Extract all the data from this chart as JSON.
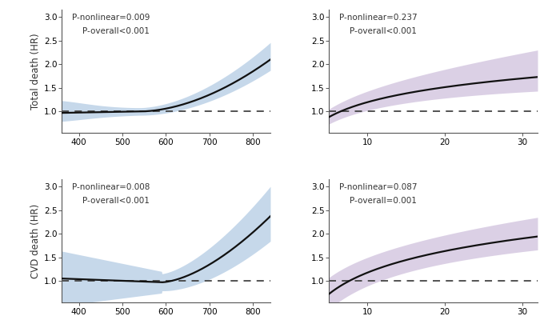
{
  "panels": [
    {
      "row": 0,
      "col": 0,
      "p_nonlinear": "P-nonlinear=0.009",
      "p_overall": "P-overall<0.001",
      "x_min": 360,
      "x_max": 840,
      "xticks": [
        400,
        500,
        600,
        700,
        800
      ],
      "color": "#a8c4e0",
      "curve_type": "blue_total",
      "ylabel": "Total death (HR)"
    },
    {
      "row": 0,
      "col": 1,
      "p_nonlinear": "P-nonlinear=0.237",
      "p_overall": "P-overall<0.001",
      "x_min": 5,
      "x_max": 32,
      "xticks": [
        10,
        20,
        30
      ],
      "color": "#c9b8d8",
      "curve_type": "purple_total",
      "ylabel": ""
    },
    {
      "row": 1,
      "col": 0,
      "p_nonlinear": "P-nonlinear=0.008",
      "p_overall": "P-overall<0.001",
      "x_min": 360,
      "x_max": 840,
      "xticks": [
        400,
        500,
        600,
        700,
        800
      ],
      "color": "#a8c4e0",
      "curve_type": "blue_cvd",
      "ylabel": "CVD death (HR)"
    },
    {
      "row": 1,
      "col": 1,
      "p_nonlinear": "P-nonlinear=0.087",
      "p_overall": "P-overall=0.001",
      "x_min": 5,
      "x_max": 32,
      "xticks": [
        10,
        20,
        30
      ],
      "color": "#c9b8d8",
      "curve_type": "purple_cvd",
      "ylabel": ""
    }
  ],
  "ylim": [
    0.55,
    3.15
  ],
  "yticks": [
    1.0,
    1.5,
    2.0,
    2.5,
    3.0
  ],
  "fig_bg": "#ffffff",
  "text_color": "#333333",
  "line_color": "#111111",
  "ref_line_color": "#444444"
}
